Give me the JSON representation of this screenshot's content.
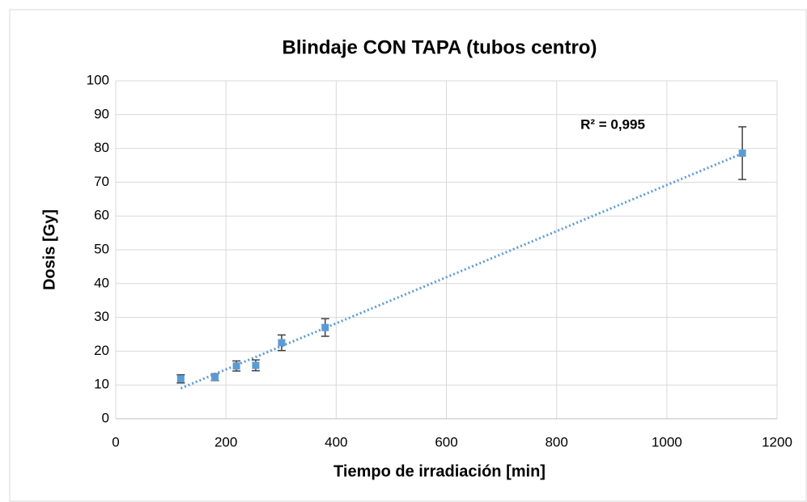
{
  "chart_data": {
    "type": "scatter",
    "title": "Blindaje CON TAPA (tubos centro)",
    "xlabel": "Tiempo de irradiación [min]",
    "ylabel": "Dosis [Gy]",
    "annotation": "R² = 0,995",
    "series": [
      {
        "color": "#5b9bd5",
        "x": [
          118,
          180,
          219,
          254,
          301,
          380,
          1137
        ],
        "values": [
          11.8,
          12.3,
          15.6,
          15.8,
          22.5,
          27,
          78.6
        ],
        "errors": [
          1.2,
          1,
          1.5,
          1.6,
          2.3,
          2.6,
          7.8
        ]
      }
    ],
    "trendline": {
      "color": "#5b9bd5",
      "x": [
        118,
        1137
      ],
      "values": [
        9,
        78.5
      ]
    },
    "xlim": [
      0,
      1200
    ],
    "xticks": [
      0,
      200,
      400,
      600,
      800,
      1000,
      1200
    ],
    "ylim": [
      0,
      100
    ],
    "yticks": [
      0,
      10,
      20,
      30,
      40,
      50,
      60,
      70,
      80,
      90,
      100
    ],
    "grid": true
  }
}
